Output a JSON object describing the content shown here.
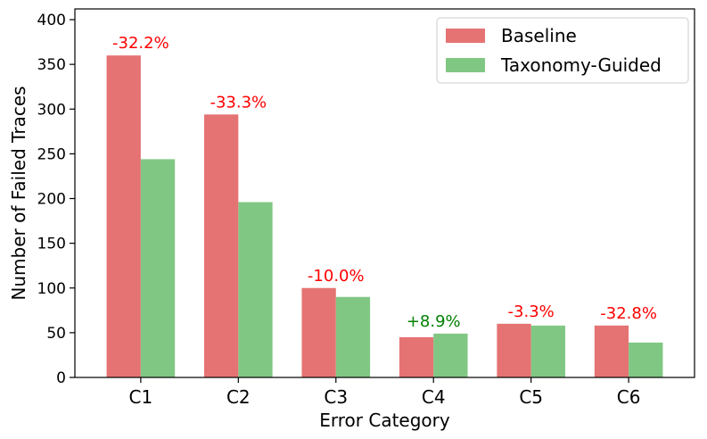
{
  "chart_data": {
    "type": "bar",
    "xlabel": "Error Category",
    "ylabel": "Number of Failed Traces",
    "ylim": [
      0,
      412
    ],
    "yticks": [
      0,
      50,
      100,
      150,
      200,
      250,
      300,
      350,
      400
    ],
    "categories": [
      "C1",
      "C2",
      "C3",
      "C4",
      "C5",
      "C6"
    ],
    "series": [
      {
        "name": "Baseline",
        "color": "#e57373",
        "values": [
          360,
          294,
          100,
          45,
          60,
          58
        ]
      },
      {
        "name": "Taxonomy-Guided",
        "color": "#81c784",
        "values": [
          244,
          196,
          90,
          49,
          58,
          39
        ]
      }
    ],
    "annotations": [
      {
        "text": "-32.2%",
        "color": "#ff0000"
      },
      {
        "text": "-33.3%",
        "color": "#ff0000"
      },
      {
        "text": "-10.0%",
        "color": "#ff0000"
      },
      {
        "text": "+8.9%",
        "color": "#008000"
      },
      {
        "text": "-3.3%",
        "color": "#ff0000"
      },
      {
        "text": "-32.8%",
        "color": "#ff0000"
      }
    ],
    "legend_position": "top-right",
    "grid": false
  }
}
